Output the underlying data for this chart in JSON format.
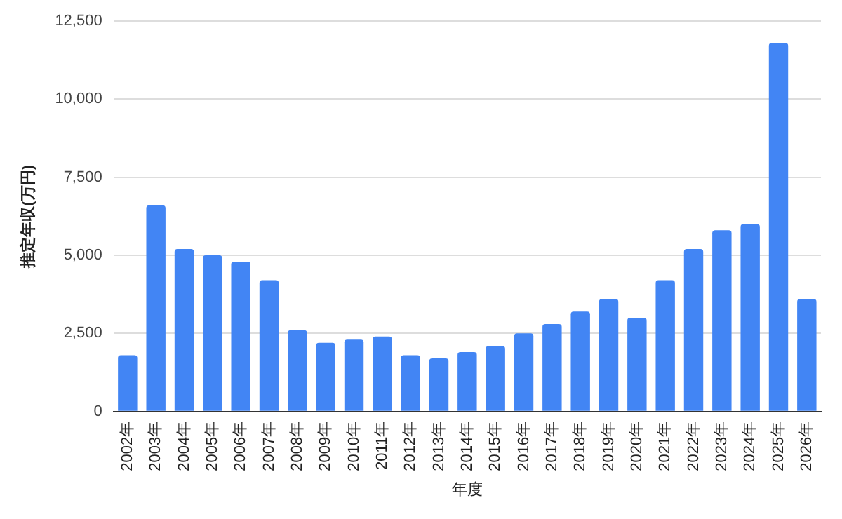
{
  "chart_data": {
    "type": "bar",
    "xlabel": "年度",
    "ylabel": "推定年収(万円)",
    "categories": [
      "2002年",
      "2003年",
      "2004年",
      "2005年",
      "2006年",
      "2007年",
      "2008年",
      "2009年",
      "2010年",
      "2011年",
      "2012年",
      "2013年",
      "2014年",
      "2015年",
      "2016年",
      "2017年",
      "2018年",
      "2019年",
      "2020年",
      "2021年",
      "2022年",
      "2023年",
      "2024年",
      "2025年",
      "2026年"
    ],
    "values": [
      1800,
      6600,
      5200,
      5000,
      4800,
      4200,
      2600,
      2200,
      2300,
      2400,
      1800,
      1700,
      1900,
      2100,
      2500,
      2800,
      3200,
      3600,
      3000,
      4200,
      5200,
      5800,
      6000,
      11800,
      3600
    ],
    "color": "#4285f4",
    "ylim": [
      0,
      12500
    ],
    "yticks": [
      {
        "value": 0,
        "label": "0"
      },
      {
        "value": 2500,
        "label": "2,500"
      },
      {
        "value": 5000,
        "label": "5,000"
      },
      {
        "value": 7500,
        "label": "7,500"
      },
      {
        "value": 10000,
        "label": "10,000"
      },
      {
        "value": 12500,
        "label": "12,500"
      }
    ],
    "grid": "y",
    "legend": false
  }
}
